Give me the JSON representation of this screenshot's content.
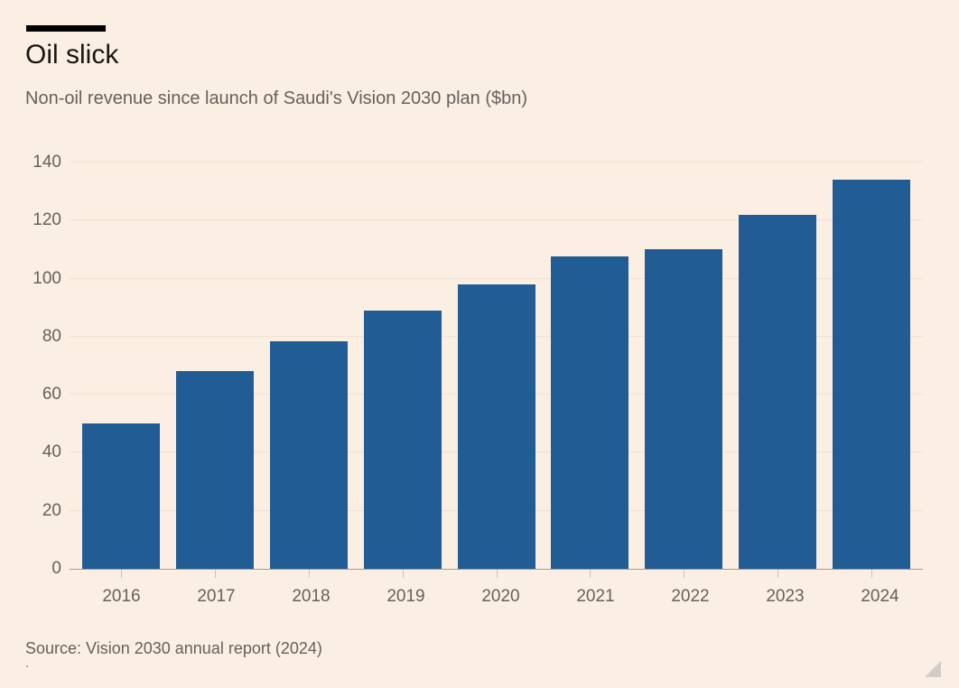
{
  "header": {
    "title": "Oil slick",
    "subtitle": "Non-oil revenue since launch of Saudi's Vision 2030 plan ($bn)"
  },
  "chart_data": {
    "type": "bar",
    "title": "Oil slick",
    "subtitle": "Non-oil revenue since launch of Saudi's Vision 2030 plan ($bn)",
    "categories": [
      "2016",
      "2017",
      "2018",
      "2019",
      "2020",
      "2021",
      "2022",
      "2023",
      "2024"
    ],
    "values": [
      50,
      68,
      78.5,
      89,
      98,
      107.5,
      110,
      122,
      134
    ],
    "unit": "$bn",
    "xlabel": "",
    "ylabel": "",
    "ylim": [
      0,
      140
    ],
    "yticks": [
      0,
      20,
      40,
      60,
      80,
      100,
      120,
      140
    ],
    "grid": "horizontal",
    "legend": "none",
    "bar_color": "#215C94"
  },
  "footer": {
    "source": "Source: Vision 2030 annual report (2024)",
    "stray_mark": "."
  },
  "colors": {
    "background": "#FBEFE3",
    "title_text": "#191613",
    "subtitle_text": "#66605C",
    "axis_label_text": "#66605C",
    "gridline": "#F1E1D1",
    "baseline": "#A79C90",
    "tick": "#CCC0B2",
    "bar": "#215C94",
    "resize_handle": "#CBC8C5"
  }
}
